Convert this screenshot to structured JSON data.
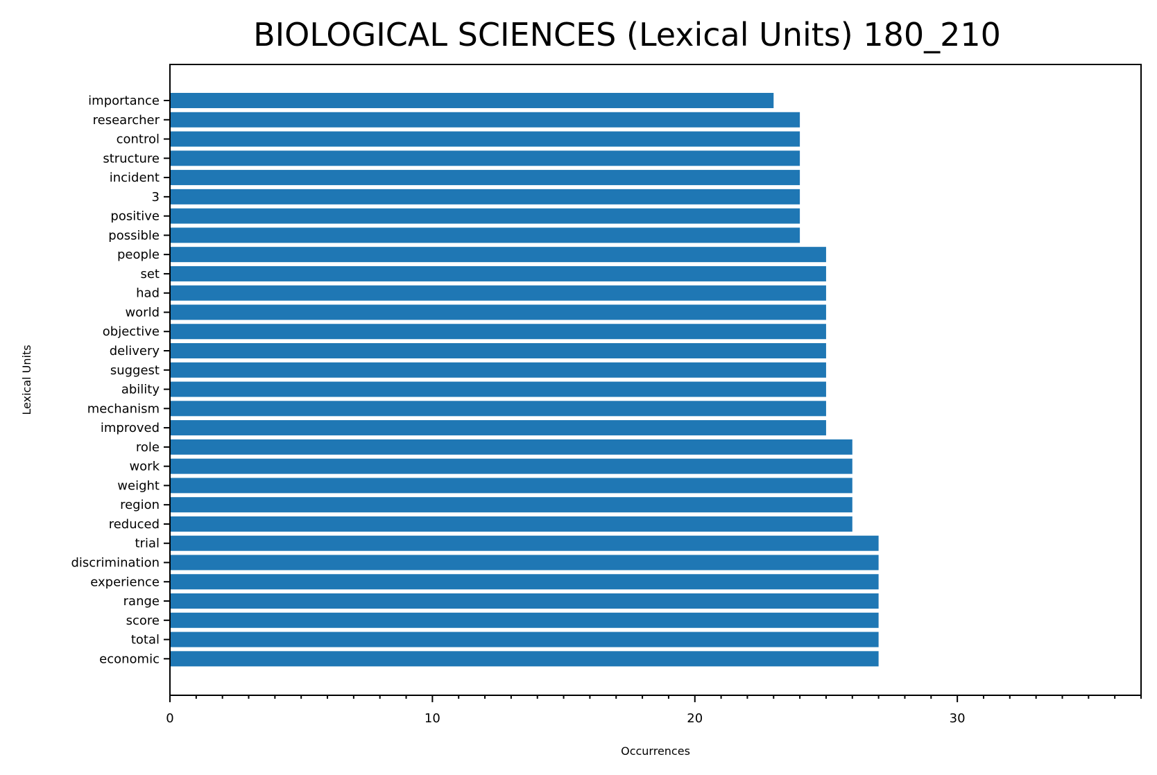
{
  "chart_data": {
    "type": "bar",
    "orientation": "horizontal",
    "title": "BIOLOGICAL SCIENCES (Lexical Units) 180_210",
    "xlabel": "Occurrences",
    "ylabel": "Lexical Units",
    "xlim": [
      0,
      37
    ],
    "x_major_ticks": [
      0,
      10,
      20,
      30
    ],
    "x_minor_tick_step": 1,
    "grid": false,
    "bar_color": "#1f77b4",
    "categories": [
      "importance",
      "researcher",
      "control",
      "structure",
      "incident",
      "3",
      "positive",
      "possible",
      "people",
      "set",
      "had",
      "world",
      "objective",
      "delivery",
      "suggest",
      "ability",
      "mechanism",
      "improved",
      "role",
      "work",
      "weight",
      "region",
      "reduced",
      "trial",
      "discrimination",
      "experience",
      "range",
      "score",
      "total",
      "economic"
    ],
    "values": [
      23,
      24,
      24,
      24,
      24,
      24,
      24,
      24,
      25,
      25,
      25,
      25,
      25,
      25,
      25,
      25,
      25,
      25,
      26,
      26,
      26,
      26,
      26,
      27,
      27,
      27,
      27,
      27,
      27,
      27
    ]
  }
}
